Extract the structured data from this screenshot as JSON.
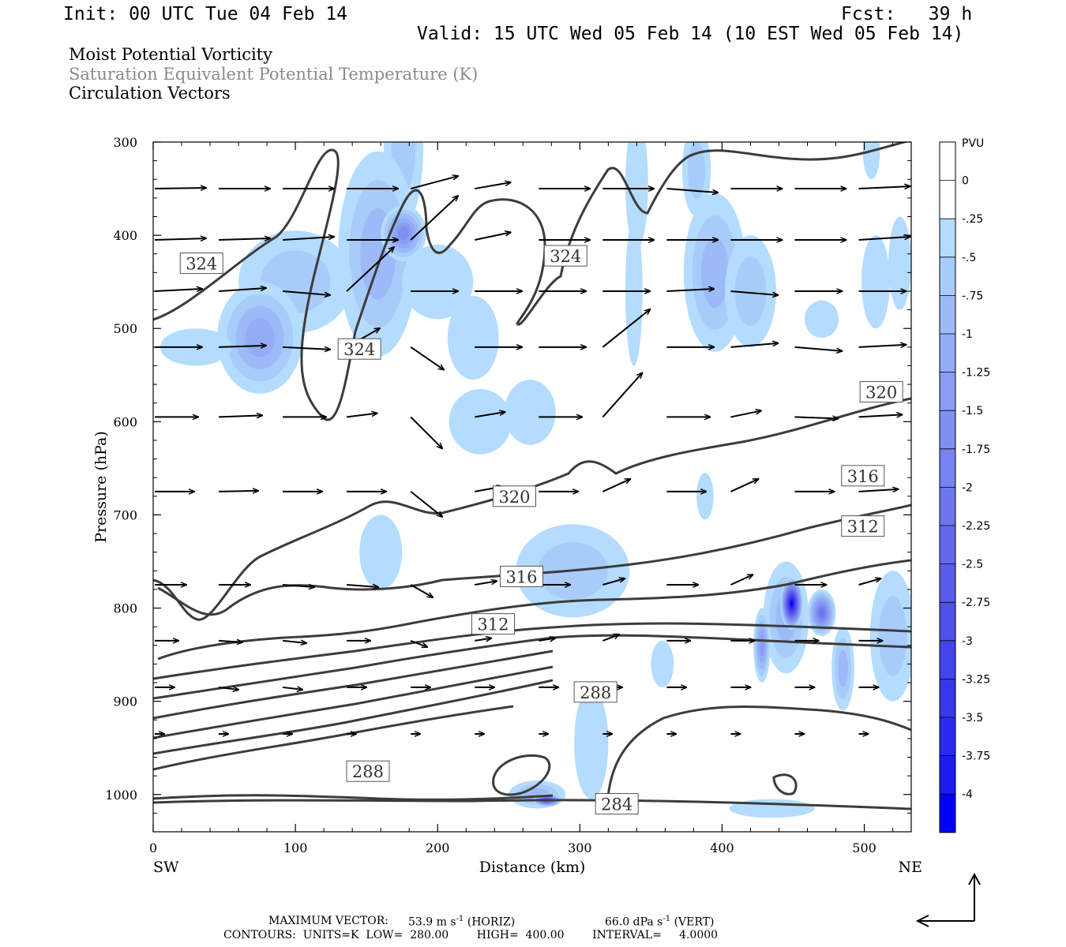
{
  "header": {
    "init": "Init: 00 UTC Tue 04 Feb 14",
    "fcst": "Fcst:   39 h",
    "valid": "Valid: 15 UTC Wed 05 Feb 14 (10 EST Wed 05 Feb 14)",
    "field1": "Moist Potential Vorticity",
    "field2": "Saturation Equivalent Potential Temperature (K)",
    "field3": "Circulation Vectors"
  },
  "footer": {
    "max_vector_label": "MAXIMUM VECTOR:",
    "max_vector_horiz": "53.9 m s",
    "horiz_tag": "(HORIZ)",
    "max_vector_vert": "66.0 dPa s",
    "vert_tag": "(VERT)",
    "exponent": "-1",
    "contours": "CONTOURS:  UNITS=K  LOW=  280.00        HIGH=  400.00        INTERVAL=     4.0000"
  },
  "colors": {
    "contour": "#3c3c3c",
    "vector": "#000000"
  },
  "chart_data": {
    "type": "contour-cross-section",
    "xlabel": "Distance (km)",
    "ylabel": "Pressure (hPa)",
    "xlim": [
      0,
      533
    ],
    "ylim": [
      1040,
      300
    ],
    "x_ticks": [
      0,
      100,
      200,
      300,
      400,
      500
    ],
    "y_ticks": [
      300,
      400,
      500,
      600,
      700,
      800,
      900,
      1000
    ],
    "end_labels": {
      "left": "SW",
      "right": "NE"
    },
    "colorbar": {
      "units": "PVU",
      "labels": [
        "0",
        "-.25",
        "-.5",
        "-.75",
        "-1",
        "-1.25",
        "-1.5",
        "-1.75",
        "-2",
        "-2.25",
        "-2.5",
        "-2.75",
        "-3",
        "-3.25",
        "-3.5",
        "-3.75",
        "-4"
      ],
      "colors": [
        "#ffffff",
        "#ffffff",
        "#b4dcff",
        "#a8ccfa",
        "#9cbaf8",
        "#92acf6",
        "#8a9df4",
        "#8090f2",
        "#7783f0",
        "#6e76ee",
        "#6469ec",
        "#5a5ceb",
        "#5050ea",
        "#4444ec",
        "#3737ee",
        "#2a2af0",
        "#1c1cf4",
        "#0000ff"
      ]
    },
    "contour_labels": [
      {
        "text": "324",
        "x": 34,
        "p": 430
      },
      {
        "text": "324",
        "x": 290,
        "p": 422
      },
      {
        "text": "324",
        "x": 145,
        "p": 522
      },
      {
        "text": "320",
        "x": 512,
        "p": 568
      },
      {
        "text": "320",
        "x": 254,
        "p": 680
      },
      {
        "text": "316",
        "x": 499,
        "p": 658
      },
      {
        "text": "316",
        "x": 259,
        "p": 766
      },
      {
        "text": "312",
        "x": 499,
        "p": 712
      },
      {
        "text": "312",
        "x": 239,
        "p": 817
      },
      {
        "text": "288",
        "x": 311,
        "p": 890
      },
      {
        "text": "288",
        "x": 151,
        "p": 975
      },
      {
        "text": "284",
        "x": 326,
        "p": 1010
      }
    ]
  }
}
